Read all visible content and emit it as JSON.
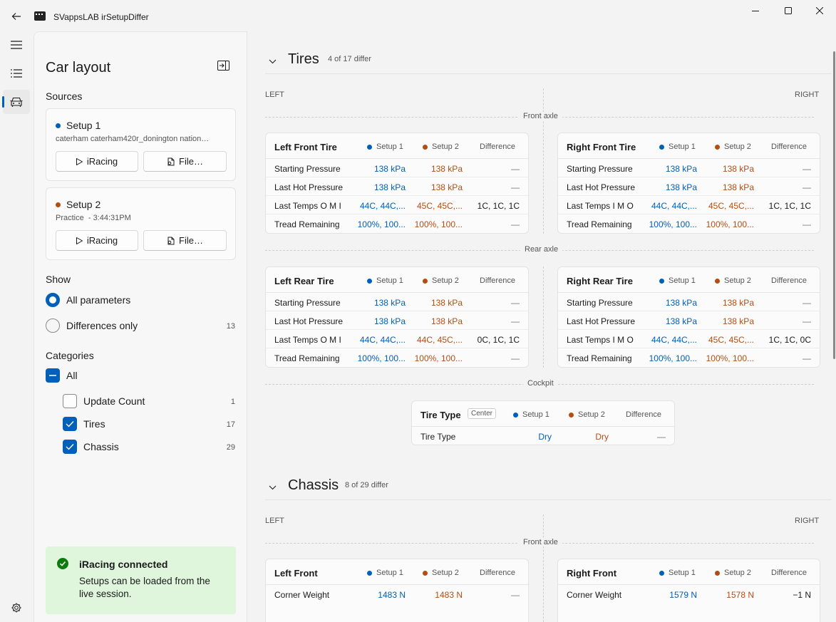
{
  "window": {
    "title": "SVappsLAB irSetupDiffer"
  },
  "panel": {
    "title": "Car layout",
    "sources_label": "Sources",
    "setup1": {
      "name": "Setup 1",
      "detail": "caterham caterham420r_donington nation…",
      "iracing_btn": "iRacing",
      "file_btn": "File…"
    },
    "setup2": {
      "name": "Setup 2",
      "detail": "Practice  - 3:44:31PM",
      "iracing_btn": "iRacing",
      "file_btn": "File…"
    },
    "show_label": "Show",
    "show_options": [
      {
        "label": "All parameters",
        "selected": true
      },
      {
        "label": "Differences only",
        "count": "13"
      }
    ],
    "categories_label": "Categories",
    "categories": {
      "all": "All",
      "items": [
        {
          "label": "Update Count",
          "count": "1",
          "checked": false
        },
        {
          "label": "Tires",
          "count": "17",
          "checked": true
        },
        {
          "label": "Chassis",
          "count": "29",
          "checked": true
        }
      ]
    },
    "status": {
      "title": "iRacing connected",
      "message": "Setups can be loaded from the live session."
    }
  },
  "headers": {
    "setup1": "Setup 1",
    "setup2": "Setup 2",
    "difference": "Difference",
    "left": "LEFT",
    "right": "RIGHT"
  },
  "tires": {
    "title": "Tires",
    "subtitle": "4 of 17 differ",
    "front_axle": "Front axle",
    "rear_axle": "Rear axle",
    "cockpit": "Cockpit",
    "lf": {
      "title": "Left Front Tire",
      "rows": [
        {
          "label": "Starting Pressure",
          "s1": "138 kPa",
          "s2": "138 kPa",
          "diff": "—"
        },
        {
          "label": "Last Hot Pressure",
          "s1": "138 kPa",
          "s2": "138 kPa",
          "diff": "—"
        },
        {
          "label": "Last Temps O M I",
          "s1": "44C, 44C,...",
          "s2": "45C, 45C,...",
          "diff": "1C, 1C, 1C"
        },
        {
          "label": "Tread Remaining",
          "s1": "100%, 100...",
          "s2": "100%, 100...",
          "diff": "—"
        }
      ]
    },
    "rf": {
      "title": "Right Front Tire",
      "rows": [
        {
          "label": "Starting Pressure",
          "s1": "138 kPa",
          "s2": "138 kPa",
          "diff": "—"
        },
        {
          "label": "Last Hot Pressure",
          "s1": "138 kPa",
          "s2": "138 kPa",
          "diff": "—"
        },
        {
          "label": "Last Temps I M O",
          "s1": "44C, 44C,...",
          "s2": "45C, 45C,...",
          "diff": "1C, 1C, 1C"
        },
        {
          "label": "Tread Remaining",
          "s1": "100%, 100...",
          "s2": "100%, 100...",
          "diff": "—"
        }
      ]
    },
    "lr": {
      "title": "Left Rear Tire",
      "rows": [
        {
          "label": "Starting Pressure",
          "s1": "138 kPa",
          "s2": "138 kPa",
          "diff": "—"
        },
        {
          "label": "Last Hot Pressure",
          "s1": "138 kPa",
          "s2": "138 kPa",
          "diff": "—"
        },
        {
          "label": "Last Temps O M I",
          "s1": "44C, 44C,...",
          "s2": "44C, 45C,...",
          "diff": "0C, 1C, 1C"
        },
        {
          "label": "Tread Remaining",
          "s1": "100%, 100...",
          "s2": "100%, 100...",
          "diff": "—"
        }
      ]
    },
    "rr": {
      "title": "Right Rear Tire",
      "rows": [
        {
          "label": "Starting Pressure",
          "s1": "138 kPa",
          "s2": "138 kPa",
          "diff": "—"
        },
        {
          "label": "Last Hot Pressure",
          "s1": "138 kPa",
          "s2": "138 kPa",
          "diff": "—"
        },
        {
          "label": "Last Temps I M O",
          "s1": "44C, 44C,...",
          "s2": "45C, 45C,...",
          "diff": "1C, 1C, 0C"
        },
        {
          "label": "Tread Remaining",
          "s1": "100%, 100...",
          "s2": "100%, 100...",
          "diff": "—"
        }
      ]
    },
    "tt": {
      "title": "Tire Type",
      "pill": "Center",
      "rows": [
        {
          "label": "Tire Type",
          "s1": "Dry",
          "s2": "Dry",
          "diff": "—"
        }
      ]
    }
  },
  "chassis": {
    "title": "Chassis",
    "subtitle": "8 of 29 differ",
    "front_axle": "Front axle",
    "lf": {
      "title": "Left Front",
      "rows": [
        {
          "label": "Corner Weight",
          "s1": "1483 N",
          "s2": "1483 N",
          "diff": "—"
        }
      ]
    },
    "rf": {
      "title": "Right Front",
      "rows": [
        {
          "label": "Corner Weight",
          "s1": "1579 N",
          "s2": "1578 N",
          "diff": "−1 N"
        }
      ]
    }
  },
  "colors": {
    "accent": "#005fb8",
    "setup1": "#005fb8",
    "setup2": "#b54d12",
    "status_bg": "#dff6dd",
    "success": "#0f7b0f"
  }
}
